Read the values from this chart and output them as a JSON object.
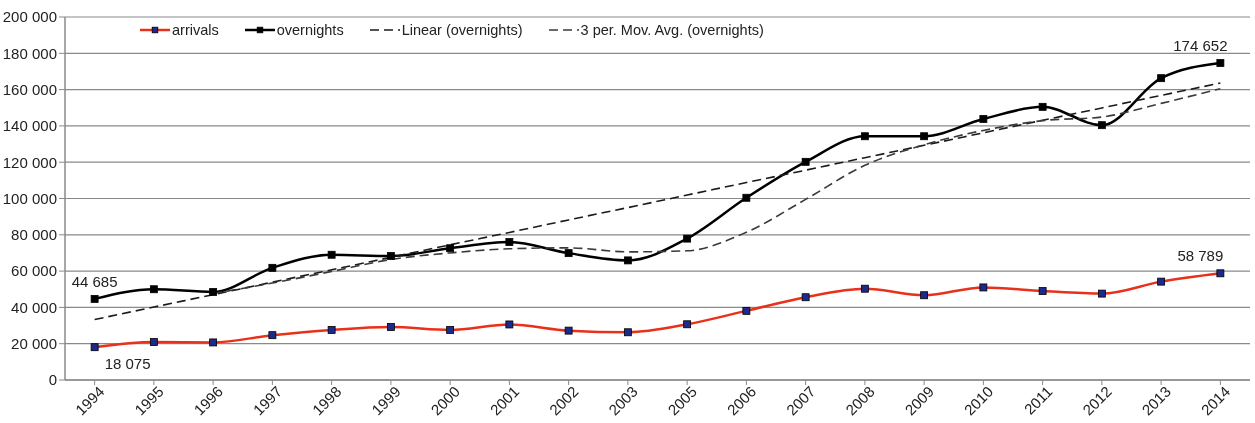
{
  "chart_data": {
    "type": "line",
    "categories": [
      "1994",
      "1995",
      "1996",
      "1997",
      "1998",
      "1999",
      "2000",
      "2001",
      "2002",
      "2003",
      "2005",
      "2006",
      "2007",
      "2008",
      "2009",
      "2010",
      "2011",
      "2012",
      "2013",
      "2014"
    ],
    "series": [
      {
        "name": "arrivals",
        "color": "#e8311a",
        "colors": [
          "#1c2a8c",
          "#1c2a8c",
          "#1c2a8c",
          "#1c2a8c",
          "#1c2a8c",
          "#1c2a8c",
          "#1c2a8c",
          "#1c2a8c",
          "#1c2a8c",
          "#1c2a8c",
          "#1c2a8c",
          "#1c2a8c",
          "#1c2a8c",
          "#1c2a8c",
          "#1c2a8c",
          "#1c2a8c",
          "#1c2a8c",
          "#1c2a8c",
          "#1c2a8c",
          "#1c2a8c"
        ],
        "values": [
          18075,
          20900,
          20700,
          24700,
          27600,
          29200,
          27600,
          30600,
          27200,
          26300,
          30700,
          38100,
          45600,
          50300,
          46700,
          51000,
          49000,
          47600,
          54200,
          58789
        ],
        "value_labels": [
          "18 075",
          null,
          null,
          null,
          null,
          null,
          null,
          null,
          null,
          null,
          null,
          null,
          null,
          null,
          null,
          null,
          null,
          null,
          null,
          "58 789"
        ]
      },
      {
        "name": "overnights",
        "color": "#000000",
        "values": [
          44685,
          50000,
          48500,
          61800,
          69000,
          68300,
          72600,
          76000,
          69900,
          65900,
          77900,
          100400,
          120200,
          134300,
          134300,
          143800,
          150500,
          140400,
          166300,
          174652
        ],
        "value_labels": [
          "44 685",
          null,
          null,
          null,
          null,
          null,
          null,
          null,
          null,
          null,
          null,
          null,
          null,
          null,
          null,
          null,
          null,
          null,
          null,
          "174 652"
        ]
      },
      {
        "name": "Linear (overnights)",
        "color": "#1a1a1a",
        "line_style": "dashed",
        "marker": "none",
        "values": [
          33300,
          40200,
          47000,
          53900,
          60700,
          67600,
          74500,
          81300,
          88200,
          95000,
          101900,
          108800,
          115600,
          122500,
          129300,
          136200,
          143100,
          149900,
          156800,
          163600
        ]
      },
      {
        "name": "3 per. Mov. Avg. (overnights)",
        "color": "#3a3a3a",
        "line_style": "dashed",
        "marker": "none",
        "values": [
          null,
          null,
          47700,
          53400,
          59800,
          66400,
          70000,
          72300,
          72800,
          70600,
          71200,
          81400,
          99500,
          118300,
          129600,
          137500,
          142900,
          144900,
          152400,
          160500
        ]
      }
    ],
    "ylim": [
      0,
      200000
    ],
    "yticks": [
      0,
      {
        "value": 20000,
        "label": "20 000"
      },
      {
        "value": 40000,
        "label": "40 000"
      },
      {
        "value": 60000,
        "label": "60 000"
      },
      {
        "value": 80000,
        "label": "80 000"
      },
      {
        "value": 100000,
        "label": "100 000"
      },
      {
        "value": 120000,
        "label": "120 000"
      },
      {
        "value": 140000,
        "label": "140 000"
      },
      {
        "value": 160000,
        "label": "160 000"
      },
      {
        "value": 180000,
        "label": "180 000"
      },
      {
        "value": 200000,
        "label": "200 000"
      }
    ],
    "grid": "y",
    "legend": "top left",
    "marker": "square",
    "line_style": "solid"
  }
}
